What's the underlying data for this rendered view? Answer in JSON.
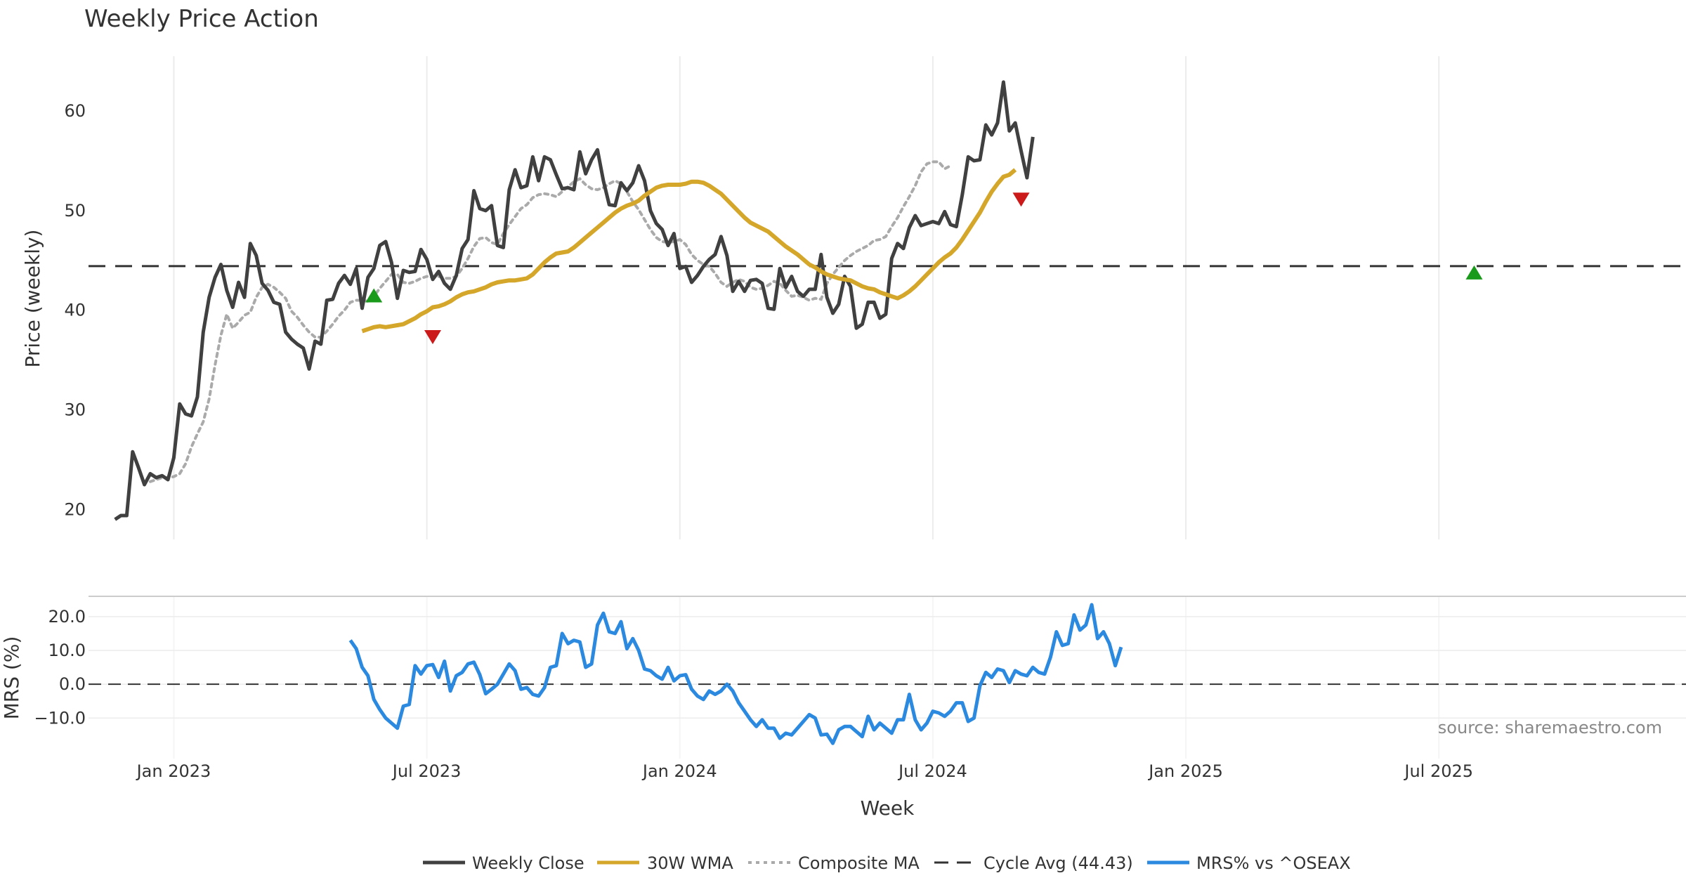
{
  "chart_data": {
    "type": "line",
    "title": "Weekly Price Action",
    "xlabel": "Week",
    "source": "source: sharemaestro.com",
    "x_ticks": [
      "Jan 2023",
      "Jul 2023",
      "Jan 2024",
      "Jul 2024",
      "Jan 2025",
      "Jul 2025"
    ],
    "x_tick_weeks": [
      10,
      53,
      96,
      139,
      182,
      225
    ],
    "x_range": [
      -4.5,
      267
    ],
    "price_panel": {
      "ylabel": "Price (weekly)",
      "ylim": [
        17,
        65.5
      ],
      "yticks": [
        20,
        30,
        40,
        50,
        60
      ],
      "cycle_avg": 44.43
    },
    "mrs_panel": {
      "ylabel": "MRS (%)",
      "ylim": [
        -22,
        26
      ],
      "yticks": [
        20.0,
        10.0,
        0.0,
        -10.0
      ],
      "ytick_labels": [
        "20.0",
        "10.0",
        "0.0",
        "−10.0"
      ],
      "zero_line": 0
    },
    "legend": {
      "weekly_close": "Weekly Close",
      "wma": "30W WMA",
      "composite": "Composite MA",
      "cycle": "Cycle Avg (44.43)",
      "mrs": "MRS% vs ^OSEAX"
    },
    "colors": {
      "weekly_close": "#404040",
      "wma": "#d4a62a",
      "composite": "#aaaaaa",
      "cycle": "#333333",
      "mrs": "#2b8ae0",
      "buy": "#1a9a1a",
      "sell": "#cc1a1a",
      "grid": "#ececec"
    },
    "series": [
      {
        "name": "Weekly Close",
        "x_start": 0,
        "values": [
          19.0,
          19.4,
          19.4,
          25.8,
          24.2,
          22.5,
          23.6,
          23.2,
          23.4,
          23.0,
          25.2,
          30.6,
          29.6,
          29.4,
          31.3,
          37.8,
          41.3,
          43.3,
          44.6,
          42.0,
          40.3,
          42.8,
          41.3,
          46.7,
          45.5,
          42.7,
          42.0,
          40.8,
          40.6,
          37.8,
          37.1,
          36.6,
          36.2,
          34.1,
          36.9,
          36.6,
          41.0,
          41.1,
          42.7,
          43.5,
          42.6,
          44.2,
          40.2,
          43.3,
          44.2,
          46.5,
          46.9,
          44.8,
          41.2,
          44.0,
          43.8,
          43.9,
          46.1,
          45.1,
          43.1,
          43.9,
          42.7,
          42.1,
          43.5,
          46.2,
          47.1,
          52.0,
          50.2,
          50.0,
          50.5,
          46.5,
          46.3,
          52.1,
          54.1,
          52.3,
          52.5,
          55.4,
          53.0,
          55.4,
          55.1,
          53.6,
          52.2,
          52.3,
          52.1,
          55.9,
          53.7,
          55.1,
          56.1,
          53.0,
          50.6,
          50.5,
          52.8,
          52.0,
          52.8,
          54.5,
          53.0,
          50.0,
          48.7,
          48.1,
          46.5,
          47.7,
          44.2,
          44.4,
          42.8,
          43.5,
          44.4,
          45.1,
          45.6,
          47.4,
          45.5,
          41.9,
          42.9,
          41.9,
          43.0,
          43.1,
          42.7,
          40.2,
          40.1,
          44.2,
          42.3,
          43.4,
          41.9,
          41.4,
          42.1,
          42.1,
          45.6,
          41.3,
          39.7,
          40.6,
          43.4,
          42.4,
          38.2,
          38.6,
          40.8,
          40.8,
          39.2,
          39.6,
          45.2,
          46.7,
          46.2,
          48.3,
          49.5,
          48.5,
          48.7,
          48.9,
          48.7,
          49.9,
          48.6,
          48.4,
          51.6,
          55.4,
          55.0,
          55.1,
          58.6,
          57.6,
          58.8,
          62.9,
          58.0,
          58.8,
          56.0,
          53.3,
          57.4
        ]
      },
      {
        "name": "30W WMA",
        "x_start": 42,
        "values": [
          37.9,
          38.1,
          38.3,
          38.4,
          38.3,
          38.4,
          38.5,
          38.6,
          38.9,
          39.2,
          39.6,
          39.9,
          40.3,
          40.4,
          40.6,
          40.9,
          41.3,
          41.6,
          41.8,
          41.9,
          42.1,
          42.3,
          42.6,
          42.8,
          42.9,
          43.0,
          43.0,
          43.1,
          43.2,
          43.6,
          44.2,
          44.8,
          45.3,
          45.7,
          45.8,
          45.9,
          46.3,
          46.8,
          47.3,
          47.8,
          48.3,
          48.8,
          49.3,
          49.8,
          50.2,
          50.5,
          50.7,
          51.0,
          51.5,
          51.9,
          52.3,
          52.5,
          52.6,
          52.6,
          52.6,
          52.7,
          52.9,
          52.9,
          52.8,
          52.5,
          52.1,
          51.7,
          51.1,
          50.5,
          49.9,
          49.3,
          48.8,
          48.5,
          48.2,
          47.9,
          47.4,
          46.9,
          46.4,
          46.0,
          45.6,
          45.1,
          44.6,
          44.3,
          43.9,
          43.6,
          43.4,
          43.2,
          43.1,
          43.0,
          42.7,
          42.4,
          42.2,
          42.1,
          41.8,
          41.6,
          41.4,
          41.2,
          41.5,
          41.9,
          42.4,
          43.0,
          43.6,
          44.2,
          44.8,
          45.3,
          45.7,
          46.3,
          47.1,
          48.0,
          48.9,
          49.8,
          50.9,
          51.9,
          52.7,
          53.4,
          53.6,
          54.1
        ]
      },
      {
        "name": "Composite MA",
        "x_start": 6,
        "values": [
          22.8,
          23.0,
          23.2,
          23.2,
          23.3,
          23.6,
          24.6,
          26.3,
          27.6,
          28.8,
          31.1,
          34.5,
          37.5,
          39.6,
          38.2,
          38.8,
          39.5,
          39.8,
          41.3,
          42.3,
          42.6,
          42.3,
          41.8,
          41.2,
          39.9,
          39.3,
          38.5,
          37.8,
          37.3,
          37.3,
          37.9,
          38.6,
          39.4,
          40.0,
          40.8,
          41.0,
          41.0,
          40.9,
          41.4,
          42.2,
          42.9,
          43.6,
          43.6,
          42.8,
          42.7,
          42.9,
          43.2,
          43.4,
          43.3,
          43.4,
          43.2,
          43.2,
          43.4,
          44.2,
          45.2,
          46.4,
          47.2,
          47.3,
          46.8,
          46.6,
          47.7,
          48.6,
          49.4,
          50.2,
          50.6,
          51.3,
          51.6,
          51.7,
          51.6,
          51.4,
          51.9,
          52.4,
          52.9,
          53.2,
          52.6,
          52.2,
          52.1,
          52.3,
          52.7,
          53.0,
          52.7,
          51.9,
          50.9,
          50.1,
          49.1,
          48.1,
          47.3,
          46.9,
          46.8,
          46.9,
          47.1,
          46.6,
          45.6,
          45.0,
          44.6,
          44.4,
          43.7,
          42.8,
          42.4,
          42.8,
          43.1,
          42.9,
          42.3,
          42.1,
          42.2,
          42.5,
          42.9,
          42.7,
          42.0,
          41.4,
          41.5,
          41.3,
          41.0,
          41.2,
          41.1,
          42.7,
          43.6,
          44.3,
          45.0,
          45.5,
          45.9,
          46.2,
          46.5,
          47.0,
          47.1,
          47.4,
          48.4,
          49.3,
          50.4,
          51.4,
          52.5,
          53.9,
          54.7,
          54.9,
          54.9,
          54.2,
          54.5
        ]
      },
      {
        "name": "MRS% vs ^OSEAX",
        "x_start": 40,
        "values": [
          13.0,
          10.5,
          5.0,
          2.5,
          -4.5,
          -7.5,
          -10.0,
          -11.5,
          -13.0,
          -6.5,
          -6.0,
          5.5,
          3.0,
          5.5,
          5.8,
          2.0,
          6.8,
          -2.0,
          2.5,
          3.5,
          6.0,
          6.5,
          2.8,
          -2.8,
          -1.5,
          0.0,
          3.0,
          6.0,
          4.0,
          -1.5,
          -1.0,
          -3.0,
          -3.5,
          -1.0,
          5.0,
          5.5,
          15.0,
          12.0,
          13.0,
          12.5,
          5.0,
          6.0,
          17.5,
          21.0,
          15.5,
          15.0,
          18.5,
          10.5,
          13.5,
          10.0,
          4.5,
          4.0,
          2.5,
          1.5,
          5.0,
          1.0,
          2.5,
          2.8,
          -1.5,
          -3.5,
          -4.5,
          -2.0,
          -3.0,
          -2.0,
          0.0,
          -2.0,
          -5.5,
          -8.0,
          -10.5,
          -12.5,
          -10.5,
          -13.0,
          -13.0,
          -16.0,
          -14.5,
          -15.0,
          -13.0,
          -11.0,
          -9.0,
          -10.0,
          -15.0,
          -14.8,
          -17.5,
          -13.5,
          -12.5,
          -12.5,
          -14.0,
          -15.5,
          -9.5,
          -13.5,
          -11.5,
          -13.0,
          -14.5,
          -10.5,
          -10.5,
          -3.0,
          -10.5,
          -13.5,
          -11.5,
          -8.0,
          -8.5,
          -9.5,
          -8.0,
          -5.5,
          -5.5,
          -11.0,
          -10.0,
          -0.5,
          3.5,
          2.0,
          4.5,
          4.0,
          0.5,
          4.0,
          3.0,
          2.5,
          5.0,
          3.5,
          3.0,
          8.0,
          15.5,
          11.5,
          12.0,
          20.5,
          16.0,
          17.5,
          23.5,
          13.5,
          15.5,
          12.0,
          5.5,
          11.0
        ]
      }
    ],
    "buy_signals": [
      {
        "week": 44,
        "price": 41.5
      },
      {
        "week": 231,
        "price": 43.8
      }
    ],
    "sell_signals": [
      {
        "week": 54,
        "price": 37.3
      },
      {
        "week": 154,
        "price": 51.1
      }
    ]
  }
}
